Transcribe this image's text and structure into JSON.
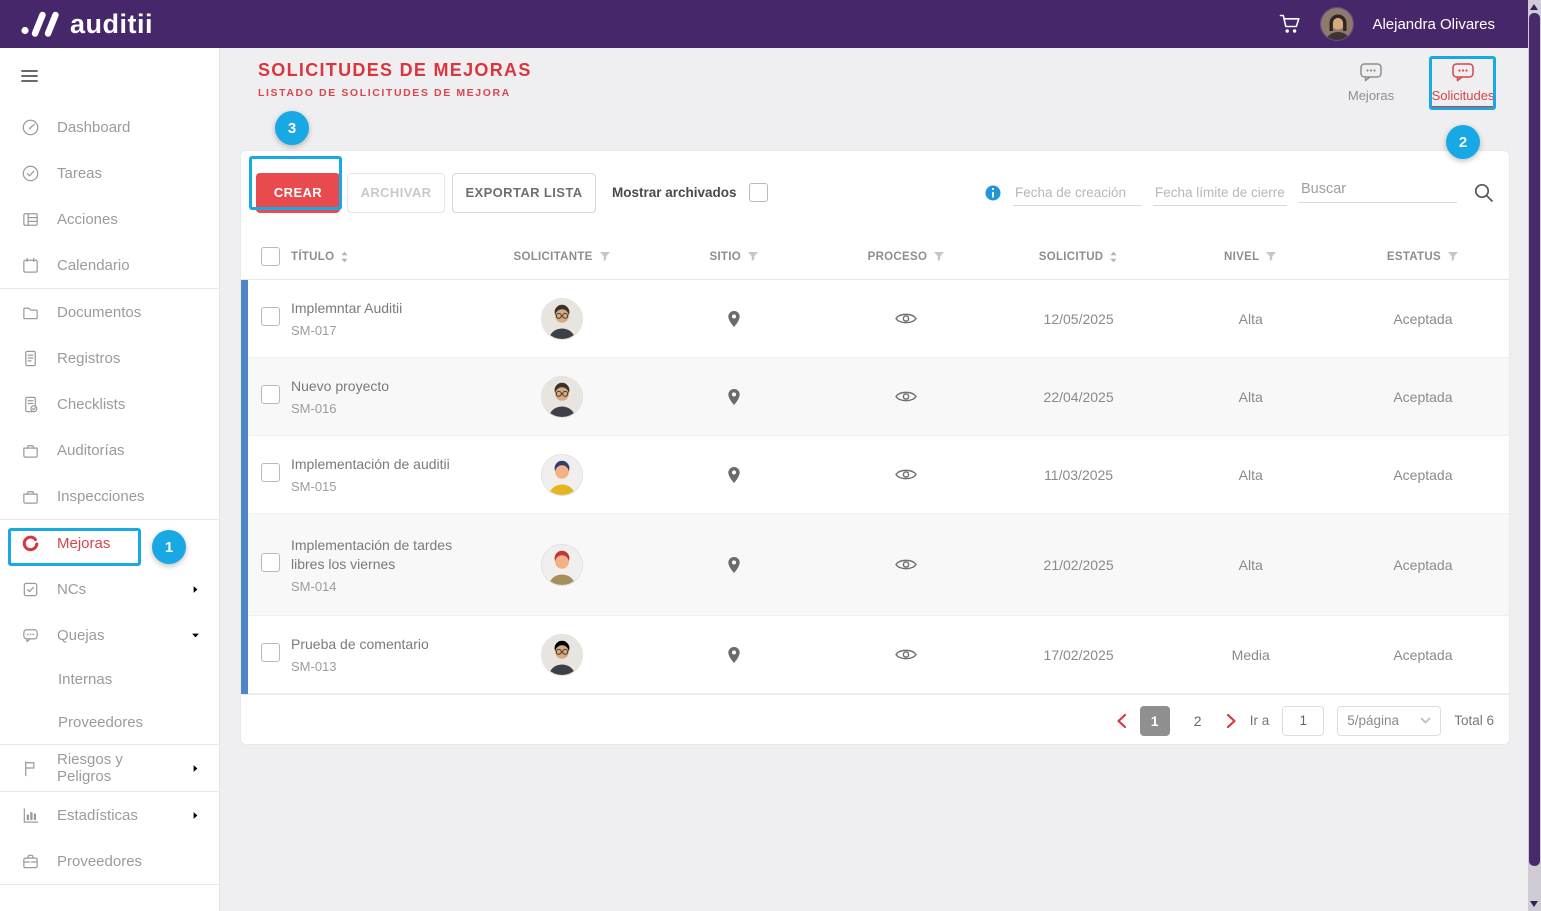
{
  "topbar": {
    "brand": "auditii",
    "user_name": "Alejandra Olivares"
  },
  "page_header": {
    "title": "SOLICITUDES DE MEJORAS",
    "subtitle": "LISTADO DE SOLICITUDES DE MEJORA",
    "tabs": [
      {
        "label": "Mejoras",
        "icon": "chat-bubble-icon",
        "active": false
      },
      {
        "label": "Solicitudes",
        "icon": "chat-bubble-icon",
        "active": true
      }
    ]
  },
  "sidebar": {
    "items": [
      {
        "label": "Dashboard",
        "icon": "gauge"
      },
      {
        "label": "Tareas",
        "icon": "check-circle"
      },
      {
        "label": "Acciones",
        "icon": "list"
      },
      {
        "label": "Calendario",
        "icon": "calendar",
        "divider_after": true
      },
      {
        "label": "Documentos",
        "icon": "folder"
      },
      {
        "label": "Registros",
        "icon": "file"
      },
      {
        "label": "Checklists",
        "icon": "file-check"
      },
      {
        "label": "Auditorías",
        "icon": "portfolio"
      },
      {
        "label": "Inspecciones",
        "icon": "portfolio",
        "divider_after": true
      },
      {
        "label": "Mejoras",
        "icon": "refresh",
        "active": true
      },
      {
        "label": "NCs",
        "icon": "checkbox",
        "chevron": "right"
      },
      {
        "label": "Quejas",
        "icon": "chat",
        "chevron": "down"
      },
      {
        "label": "Internas",
        "sub": true
      },
      {
        "label": "Proveedores",
        "sub": true,
        "divider_after": true
      },
      {
        "label": "Riesgos y Peligros",
        "icon": "flag",
        "chevron": "right",
        "divider_after": true
      },
      {
        "label": "Estadísticas",
        "icon": "stats",
        "chevron": "right"
      },
      {
        "label": "Proveedores",
        "icon": "briefcase",
        "divider_after": true
      }
    ]
  },
  "toolbar": {
    "create_label": "CREAR",
    "archive_label": "ARCHIVAR",
    "export_label": "EXPORTAR LISTA",
    "show_archived_label": "Mostrar archivados",
    "show_archived_checked": false,
    "fecha_creacion_placeholder": "Fecha de creación",
    "fecha_cierre_placeholder": "Fecha límite de cierre",
    "search_placeholder": "Buscar"
  },
  "table": {
    "headers": [
      {
        "label": "TÍTULO",
        "control": "sort"
      },
      {
        "label": "SOLICITANTE",
        "control": "filter"
      },
      {
        "label": "SITIO",
        "control": "filter"
      },
      {
        "label": "PROCESO",
        "control": "filter"
      },
      {
        "label": "SOLICITUD",
        "control": "sort"
      },
      {
        "label": "NIVEL",
        "control": "filter"
      },
      {
        "label": "ESTATUS",
        "control": "filter"
      }
    ],
    "rows": [
      {
        "title": "Implemntar Auditii",
        "code": "SM-017",
        "solicitud_date": "12/05/2025",
        "nivel": "Alta",
        "estatus": "Aceptada",
        "avatar": {
          "style": "photo",
          "bg": "#e8e5e0",
          "hair": "#3a322a",
          "skin": "#d8a87e",
          "shirt": "#3f3f47"
        }
      },
      {
        "title": "Nuevo proyecto",
        "code": "SM-016",
        "solicitud_date": "22/04/2025",
        "nivel": "Alta",
        "estatus": "Aceptada",
        "avatar": {
          "style": "photo",
          "bg": "#e8e5e0",
          "hair": "#3a322a",
          "skin": "#d8a87e",
          "shirt": "#3f3f47"
        }
      },
      {
        "title": "Implementación de auditii",
        "code": "SM-015",
        "solicitud_date": "11/03/2025",
        "nivel": "Alta",
        "estatus": "Aceptada",
        "avatar": {
          "style": "cartoon",
          "bg": "#f0efed",
          "hair": "#2e3e6e",
          "skin": "#f2b286",
          "shirt": "#e6b41e"
        }
      },
      {
        "title": "Implementación de tardes libres los viernes",
        "code": "SM-014",
        "solicitud_date": "21/02/2025",
        "nivel": "Alta",
        "estatus": "Aceptada",
        "avatar": {
          "style": "cartoon",
          "bg": "#f0efed",
          "hair": "#c03535",
          "skin": "#f2b286",
          "shirt": "#a58f5d"
        }
      },
      {
        "title": "Prueba de comentario",
        "code": "SM-013",
        "solicitud_date": "17/02/2025",
        "nivel": "Media",
        "estatus": "Aceptada",
        "avatar": {
          "style": "photo",
          "bg": "#e8e5e0",
          "hair": "#2b2ب2a",
          "skin": "#d8a87e",
          "shirt": "#3f3f47"
        }
      }
    ]
  },
  "pagination": {
    "pages": [
      "1",
      "2"
    ],
    "active_page": "1",
    "goto_label": "Ir a",
    "goto_value": "1",
    "page_size_value": "5/página",
    "total_label": "Total 6"
  },
  "annotations": {
    "step1": "1",
    "step2": "2",
    "step3": "3"
  },
  "colors": {
    "navbar_purple": "#46276a",
    "accent_red": "#d9363e",
    "create_button_red": "#e84a4e",
    "annotation_blue": "#18a8e4",
    "row_bar_blue": "#4d86c6"
  }
}
